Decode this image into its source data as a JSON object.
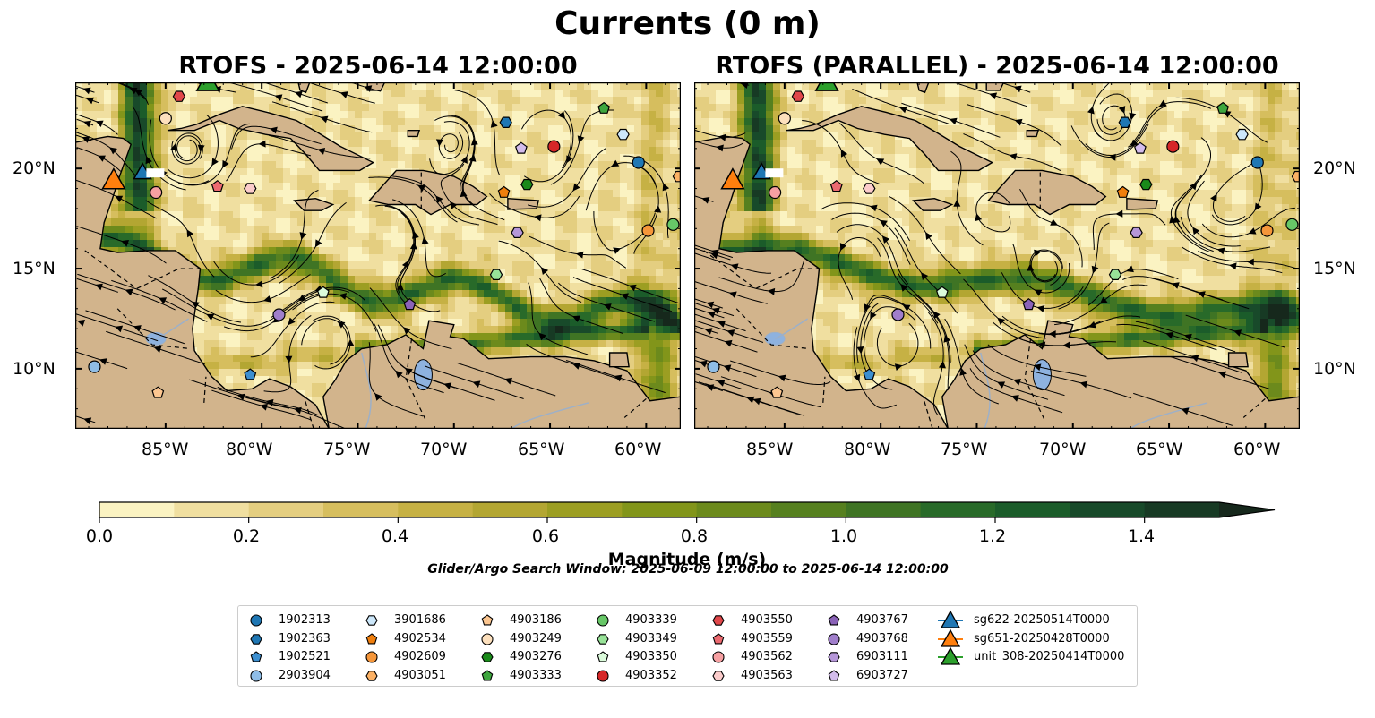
{
  "figure": {
    "title": "Currents (0 m)",
    "panels": [
      {
        "title": "RTOFS - 2025-06-14 12:00:00"
      },
      {
        "title": "RTOFS (PARALLEL) - 2025-06-14 12:00:00"
      }
    ],
    "lon_ticks": [
      "85°W",
      "80°W",
      "75°W",
      "70°W",
      "65°W",
      "60°W"
    ],
    "lat_ticks": [
      "20°N",
      "15°N",
      "10°N"
    ],
    "colorbar": {
      "label": "Magnitude (m/s)",
      "ticks": [
        "0.0",
        "0.2",
        "0.4",
        "0.6",
        "0.8",
        "1.0",
        "1.2",
        "1.4"
      ],
      "levels": [
        0.0,
        0.1,
        0.2,
        0.3,
        0.4,
        0.5,
        0.6,
        0.7,
        0.8,
        0.9,
        1.0,
        1.1,
        1.2,
        1.3,
        1.4,
        1.5
      ],
      "extend": "max",
      "colors": [
        "#fbf3c2",
        "#f0dfa0",
        "#e4ce80",
        "#d6be5e",
        "#c6b144",
        "#b3a632",
        "#9c9e22",
        "#82951a",
        "#6c8a1c",
        "#56801f",
        "#3f7424",
        "#286a29",
        "#1b5c2a",
        "#184a2a",
        "#173a24",
        "#16281c"
      ]
    },
    "search_window_note": "Glider/Argo Search Window: 2025-06-09 12:00:00 to 2025-06-14 12:00:00",
    "colors": {
      "land": "#d2b48c",
      "lake": "#8eb2df",
      "river": "#9db0c8",
      "ocean_low": "#fbf3c2"
    }
  },
  "legend": [
    {
      "id": "1902313",
      "marker": "circle",
      "color": "#1f77b4"
    },
    {
      "id": "1902363",
      "marker": "hexagon",
      "color": "#1f77b4"
    },
    {
      "id": "1902521",
      "marker": "pentagon",
      "color": "#3c8fd0"
    },
    {
      "id": "2903904",
      "marker": "circle",
      "color": "#8fbde6"
    },
    {
      "id": "3901686",
      "marker": "hexagon",
      "color": "#cde8fb"
    },
    {
      "id": "4902534",
      "marker": "pentagon",
      "color": "#f07f0e"
    },
    {
      "id": "4902609",
      "marker": "circle",
      "color": "#f5963a"
    },
    {
      "id": "4903051",
      "marker": "hexagon",
      "color": "#fcb164"
    },
    {
      "id": "4903186",
      "marker": "pentagon",
      "color": "#fcc690"
    },
    {
      "id": "4903249",
      "marker": "circle",
      "color": "#fde0bd"
    },
    {
      "id": "4903276",
      "marker": "hexagon",
      "color": "#1a8a1a"
    },
    {
      "id": "4903333",
      "marker": "pentagon",
      "color": "#3ea63e"
    },
    {
      "id": "4903339",
      "marker": "circle",
      "color": "#67c767"
    },
    {
      "id": "4903349",
      "marker": "hexagon",
      "color": "#98e398"
    },
    {
      "id": "4903350",
      "marker": "pentagon",
      "color": "#dbfbdb"
    },
    {
      "id": "4903352",
      "marker": "circle",
      "color": "#d62728"
    },
    {
      "id": "4903550",
      "marker": "hexagon",
      "color": "#e0474a"
    },
    {
      "id": "4903559",
      "marker": "pentagon",
      "color": "#ec6a70"
    },
    {
      "id": "4903562",
      "marker": "circle",
      "color": "#f6a0a2"
    },
    {
      "id": "4903563",
      "marker": "hexagon",
      "color": "#fbcccb"
    },
    {
      "id": "4903767",
      "marker": "pentagon",
      "color": "#8b63b8"
    },
    {
      "id": "4903768",
      "marker": "circle",
      "color": "#a07ecb"
    },
    {
      "id": "6903111",
      "marker": "hexagon",
      "color": "#b697d9"
    },
    {
      "id": "6903727",
      "marker": "pentagon",
      "color": "#d3bcec"
    },
    {
      "id": "sg622-20250514T0000",
      "marker": "triangle",
      "color": "#1f77b4"
    },
    {
      "id": "sg651-20250428T0000",
      "marker": "triangle",
      "color": "#ff7f0e"
    },
    {
      "id": "unit_308-20250414T0000",
      "marker": "triangle",
      "color": "#2ca02c"
    }
  ],
  "map_extent": {
    "lon": [
      -89.7,
      -58.2
    ],
    "lat": [
      7.0,
      24.3
    ]
  },
  "floats": [
    {
      "id": "1902313",
      "lon": -60.4,
      "lat": 20.3
    },
    {
      "id": "1902363",
      "lon": -67.3,
      "lat": 22.3
    },
    {
      "id": "1902521",
      "lon": -80.6,
      "lat": 9.7
    },
    {
      "id": "2903904",
      "lon": -88.7,
      "lat": 10.1
    },
    {
      "id": "3901686",
      "lon": -61.2,
      "lat": 21.7
    },
    {
      "id": "4902534",
      "lon": -67.4,
      "lat": 18.8
    },
    {
      "id": "4902609",
      "lon": -59.9,
      "lat": 16.9
    },
    {
      "id": "4903051",
      "lon": -58.3,
      "lat": 19.6
    },
    {
      "id": "4903186",
      "lon": -85.4,
      "lat": 8.8
    },
    {
      "id": "4903249",
      "lon": -85.0,
      "lat": 22.5
    },
    {
      "id": "4903276",
      "lon": -66.2,
      "lat": 19.2
    },
    {
      "id": "4903333",
      "lon": -62.2,
      "lat": 23.0
    },
    {
      "id": "4903339",
      "lon": -58.6,
      "lat": 17.2
    },
    {
      "id": "4903349",
      "lon": -67.8,
      "lat": 14.7
    },
    {
      "id": "4903350",
      "lon": -76.8,
      "lat": 13.8
    },
    {
      "id": "4903352",
      "lon": -64.8,
      "lat": 21.1
    },
    {
      "id": "4903550",
      "lon": -84.3,
      "lat": 23.6
    },
    {
      "id": "4903559",
      "lon": -82.3,
      "lat": 19.1
    },
    {
      "id": "4903562",
      "lon": -85.5,
      "lat": 18.8
    },
    {
      "id": "4903563",
      "lon": -80.6,
      "lat": 19.0
    },
    {
      "id": "4903767",
      "lon": -72.3,
      "lat": 13.2
    },
    {
      "id": "4903768",
      "lon": -79.1,
      "lat": 12.7
    },
    {
      "id": "6903111",
      "lon": -66.7,
      "lat": 16.8
    },
    {
      "id": "6903727",
      "lon": -66.5,
      "lat": 21.0
    }
  ],
  "gliders": [
    {
      "id": "sg622-20250514T0000",
      "lon": -86.2,
      "lat": 19.8
    },
    {
      "id": "sg651-20250428T0000",
      "lon": -87.7,
      "lat": 19.4
    },
    {
      "id": "unit_308-20250414T0000",
      "lon": -82.8,
      "lat": 24.3
    }
  ]
}
